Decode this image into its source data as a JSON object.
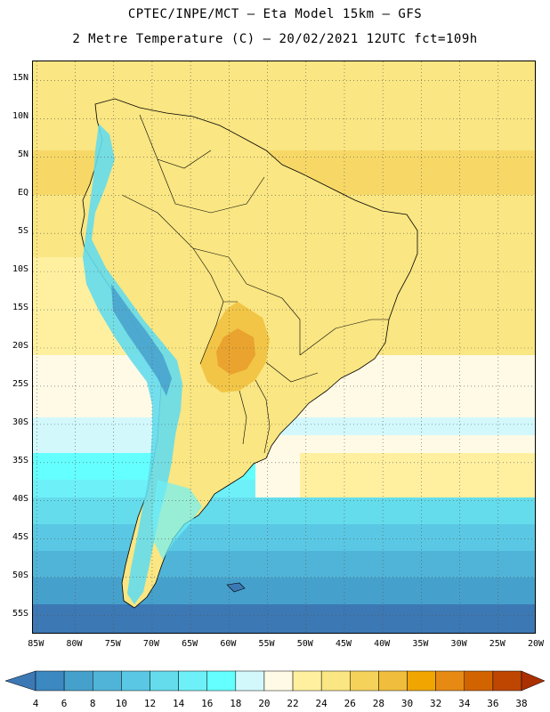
{
  "header": {
    "line1": "CPTEC/INPE/MCT –  Eta Model 15km – GFS",
    "line2": "2 Metre Temperature (C) – 20/02/2021 12UTC fct=109h"
  },
  "map": {
    "lat_labels": [
      "15N",
      "10N",
      "5N",
      "EQ",
      "5S",
      "10S",
      "15S",
      "20S",
      "25S",
      "30S",
      "35S",
      "40S",
      "45S",
      "50S",
      "55S"
    ],
    "lon_labels": [
      "85W",
      "80W",
      "75W",
      "70W",
      "65W",
      "60W",
      "55W",
      "50W",
      "45W",
      "40W",
      "35W",
      "30W",
      "25W",
      "20W"
    ],
    "lat_range": [
      17.5,
      -57.5
    ],
    "lon_range": [
      -85.5,
      -20
    ]
  },
  "colorbar": {
    "labels": [
      "4",
      "6",
      "8",
      "10",
      "12",
      "14",
      "16",
      "18",
      "20",
      "22",
      "24",
      "26",
      "28",
      "30",
      "32",
      "34",
      "36",
      "38"
    ],
    "colors": [
      "#3c78b4",
      "#3c88c0",
      "#46a0cc",
      "#50b4d8",
      "#5ac8e4",
      "#64dcec",
      "#6ef0f8",
      "#64ffff",
      "#d2f8fc",
      "#fffae6",
      "#fff0a0",
      "#fae682",
      "#f5d25a",
      "#f0be3c",
      "#f0a500",
      "#e68a14",
      "#d26400",
      "#be4600",
      "#aa3000"
    ]
  },
  "colors": {
    "land_border": "#000000",
    "grid": "#555555"
  }
}
